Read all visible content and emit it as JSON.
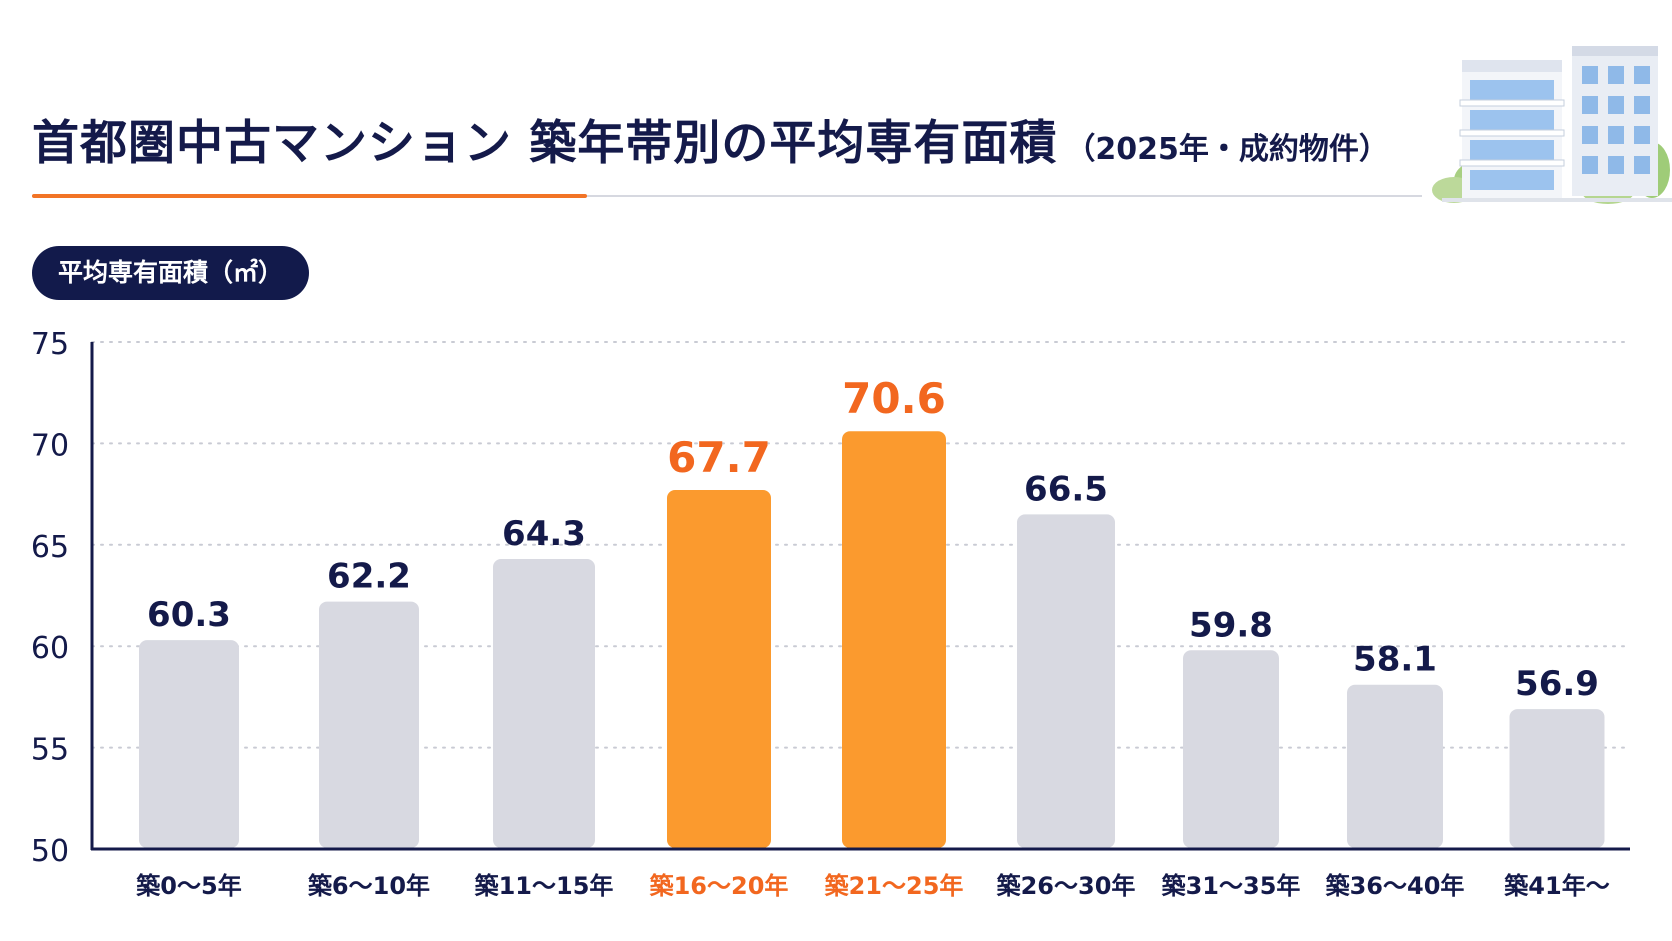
{
  "title": {
    "main": "首都圏中古マンション 築年帯別の平均専有面積",
    "sub": "（2025年・成約物件）"
  },
  "chart_data": {
    "type": "bar",
    "title": "首都圏中古マンション 築年帯別の平均専有面積（2025年・成約物件）",
    "ylabel": "平均専有面積（㎡）",
    "xlabel": "",
    "ylim": [
      50,
      75
    ],
    "yticks": [
      50,
      55,
      60,
      65,
      70,
      75
    ],
    "grid": true,
    "categories": [
      "築0〜5年",
      "築6〜10年",
      "築11〜15年",
      "築16〜20年",
      "築21〜25年",
      "築26〜30年",
      "築31〜35年",
      "築36〜40年",
      "築41年〜"
    ],
    "values": [
      60.3,
      62.2,
      64.3,
      67.7,
      70.6,
      66.5,
      59.8,
      58.1,
      56.9
    ],
    "value_labels": [
      "60.3",
      "62.2",
      "64.3",
      "67.7",
      "70.6",
      "66.5",
      "59.8",
      "58.1",
      "56.9"
    ],
    "highlighted": [
      false,
      false,
      false,
      true,
      true,
      false,
      false,
      false,
      false
    ]
  },
  "colors": {
    "bar": "#d8d9e1",
    "bar_highlight": "#fb9a2e",
    "label_highlight": "#f2671f",
    "text_dark": "#141a4a",
    "accent": "#f27426",
    "grid": "#c9cbd4",
    "axis": "#141a4a"
  },
  "icons": {
    "building": "building-illustration-icon"
  }
}
